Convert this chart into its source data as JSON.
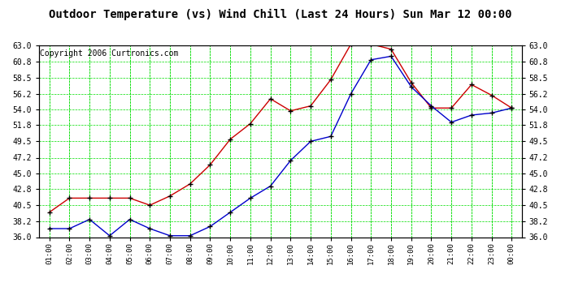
{
  "title": "Outdoor Temperature (vs) Wind Chill (Last 24 Hours) Sun Mar 12 00:00",
  "copyright": "Copyright 2006 Curtronics.com",
  "x_labels": [
    "01:00",
    "02:00",
    "03:00",
    "04:00",
    "05:00",
    "06:00",
    "07:00",
    "08:00",
    "09:00",
    "10:00",
    "11:00",
    "12:00",
    "13:00",
    "14:00",
    "15:00",
    "16:00",
    "17:00",
    "18:00",
    "19:00",
    "20:00",
    "21:00",
    "22:00",
    "23:00",
    "00:00"
  ],
  "red_temp": [
    39.5,
    41.5,
    41.5,
    41.5,
    41.5,
    40.5,
    41.8,
    43.5,
    46.2,
    49.8,
    52.0,
    55.5,
    53.8,
    54.5,
    58.2,
    63.2,
    63.2,
    62.5,
    57.8,
    54.2,
    54.2,
    57.5,
    56.0,
    54.2
  ],
  "blue_wind": [
    37.2,
    37.2,
    38.5,
    36.2,
    38.5,
    37.2,
    36.2,
    36.2,
    37.5,
    39.5,
    41.5,
    43.2,
    46.8,
    49.5,
    50.2,
    56.2,
    61.0,
    61.5,
    57.2,
    54.5,
    52.2,
    53.2,
    53.5,
    54.2
  ],
  "ylim": [
    36.0,
    63.0
  ],
  "yticks": [
    36.0,
    38.2,
    40.5,
    42.8,
    45.0,
    47.2,
    49.5,
    51.8,
    54.0,
    56.2,
    58.5,
    60.8,
    63.0
  ],
  "bg_color": "#ffffff",
  "plot_bg_color": "#ffffff",
  "grid_color": "#00dd00",
  "red_color": "#cc0000",
  "blue_color": "#0000cc",
  "title_font_size": 10,
  "copyright_font_size": 7
}
